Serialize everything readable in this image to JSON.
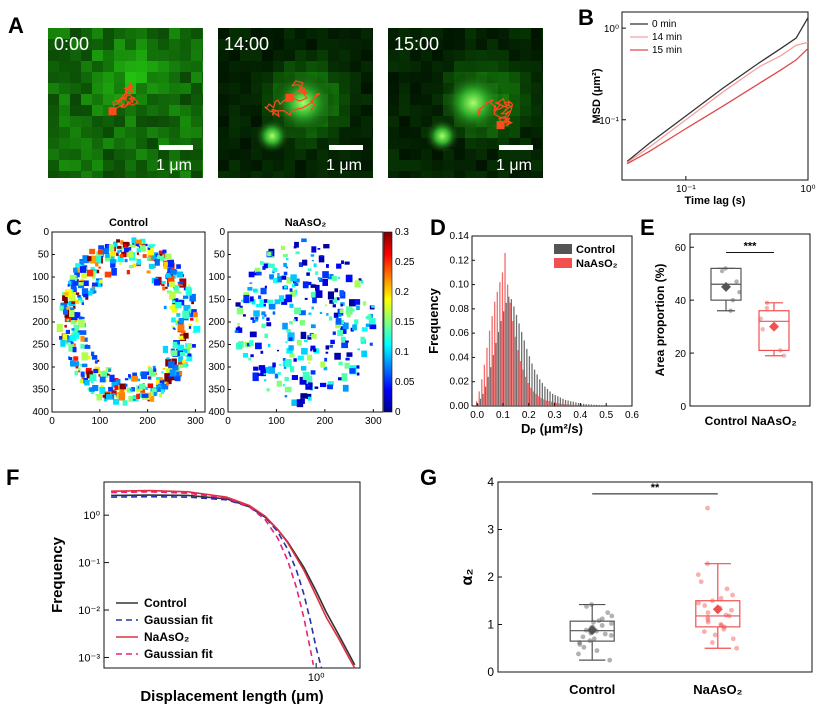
{
  "panels": {
    "A": {
      "letter": "A",
      "frames": [
        {
          "time": "0:00",
          "scale_label": "1 μm"
        },
        {
          "time": "14:00",
          "scale_label": "1 μm"
        },
        {
          "time": "15:00",
          "scale_label": "1 μm"
        }
      ],
      "colors": {
        "background": "#0b1a06",
        "cell": "#2fae2a",
        "track": "#ff4a1c"
      }
    },
    "B": {
      "letter": "B"
    },
    "C": {
      "letter": "C"
    },
    "D": {
      "letter": "D"
    },
    "E": {
      "letter": "E"
    },
    "F": {
      "letter": "F"
    },
    "G": {
      "letter": "G"
    }
  },
  "chart_data": [
    {
      "panel": "B",
      "type": "line",
      "xlabel": "Time lag (s)",
      "ylabel": "MSD (μm²)",
      "xscale": "log",
      "yscale": "log",
      "xlim": [
        0.03,
        1.0
      ],
      "ylim": [
        0.022,
        1.5
      ],
      "xtick_labels": [
        "10⁻¹",
        "10⁰"
      ],
      "ytick_labels": [
        "10⁻¹",
        "10⁰"
      ],
      "legend_position": "top-left",
      "series": [
        {
          "name": "0 min",
          "color": "#333333",
          "x": [
            0.033,
            0.05,
            0.1,
            0.2,
            0.4,
            0.6,
            0.8,
            1.0
          ],
          "y": [
            0.035,
            0.055,
            0.11,
            0.22,
            0.42,
            0.6,
            0.78,
            1.3
          ]
        },
        {
          "name": "14 min",
          "color": "#f4a0a0",
          "x": [
            0.033,
            0.05,
            0.1,
            0.2,
            0.4,
            0.6,
            0.8,
            1.0
          ],
          "y": [
            0.034,
            0.05,
            0.1,
            0.2,
            0.38,
            0.5,
            0.65,
            0.7
          ]
        },
        {
          "name": "15 min",
          "color": "#e04848",
          "x": [
            0.033,
            0.05,
            0.1,
            0.2,
            0.4,
            0.6,
            0.8,
            1.0
          ],
          "y": [
            0.033,
            0.045,
            0.08,
            0.14,
            0.25,
            0.35,
            0.45,
            0.6
          ]
        }
      ]
    },
    {
      "panel": "C",
      "type": "heatmap",
      "titles": [
        "Control",
        "NaAsO₂"
      ],
      "x_ticks": [
        0,
        100,
        200,
        300
      ],
      "y_ticks": [
        0,
        50,
        100,
        150,
        200,
        250,
        300,
        350,
        400
      ],
      "colorbar_ticks": [
        "0.3",
        "0.25",
        "0.2",
        "0.15",
        "0.1",
        "0.05",
        "0"
      ],
      "colorbar_range": [
        0,
        0.3
      ],
      "colormap": "jet"
    },
    {
      "panel": "D",
      "type": "bar",
      "xlabel": "Dₚ (μm²/s)",
      "ylabel": "Frequency",
      "xlim": [
        -0.02,
        0.6
      ],
      "ylim": [
        0,
        0.14
      ],
      "x_ticks": [
        "0.0",
        "0.1",
        "0.2",
        "0.3",
        "0.4",
        "0.5",
        "0.6"
      ],
      "y_ticks": [
        "0.00",
        "0.02",
        "0.04",
        "0.06",
        "0.08",
        "0.10",
        "0.12",
        "0.14"
      ],
      "legend_position": "top-right",
      "bin_width": 0.01,
      "bin_centers": [
        0.0,
        0.01,
        0.02,
        0.03,
        0.04,
        0.05,
        0.06,
        0.07,
        0.08,
        0.09,
        0.1,
        0.11,
        0.12,
        0.13,
        0.14,
        0.15,
        0.16,
        0.17,
        0.18,
        0.19,
        0.2,
        0.21,
        0.22,
        0.23,
        0.24,
        0.25,
        0.26,
        0.27,
        0.28,
        0.29,
        0.3,
        0.31,
        0.32,
        0.33,
        0.34,
        0.35,
        0.36,
        0.37,
        0.38,
        0.39,
        0.4,
        0.41,
        0.42,
        0.43,
        0.44,
        0.45,
        0.46,
        0.47,
        0.48,
        0.49,
        0.5,
        0.51,
        0.52,
        0.53,
        0.54,
        0.55,
        0.56,
        0.57,
        0.58,
        0.59
      ],
      "series": [
        {
          "name": "Control",
          "color": "#555555",
          "values": [
            0.002,
            0.006,
            0.01,
            0.016,
            0.024,
            0.032,
            0.042,
            0.052,
            0.061,
            0.07,
            0.078,
            0.085,
            0.09,
            0.088,
            0.082,
            0.075,
            0.068,
            0.061,
            0.054,
            0.047,
            0.041,
            0.035,
            0.03,
            0.026,
            0.022,
            0.019,
            0.016,
            0.014,
            0.012,
            0.01,
            0.009,
            0.008,
            0.007,
            0.006,
            0.005,
            0.0045,
            0.004,
            0.0035,
            0.003,
            0.0025,
            0.002,
            0.0018,
            0.0016,
            0.0014,
            0.0012,
            0.001,
            0.0009,
            0.0008,
            0.0007,
            0.0006,
            0.0005,
            0.0005,
            0.0004,
            0.0004,
            0.0003,
            0.0003,
            0.0002,
            0.0002,
            0.0002,
            0.0001
          ]
        },
        {
          "name": "NaAsO₂",
          "color": "#f05050",
          "values": [
            0.004,
            0.012,
            0.022,
            0.034,
            0.048,
            0.062,
            0.074,
            0.086,
            0.094,
            0.102,
            0.11,
            0.126,
            0.1,
            0.085,
            0.07,
            0.057,
            0.046,
            0.037,
            0.03,
            0.024,
            0.019,
            0.015,
            0.012,
            0.01,
            0.008,
            0.0065,
            0.0055,
            0.0045,
            0.004,
            0.0035,
            0.003,
            0.0025,
            0.002,
            0.0018,
            0.0015,
            0.0013,
            0.0011,
            0.001,
            0.0009,
            0.0008,
            0.0007,
            0.0006,
            0.0005,
            0.0005,
            0.0004,
            0.0004,
            0.0003,
            0.0003,
            0.0003,
            0.0002,
            0.0002,
            0.0002,
            0.0002,
            0.0001,
            0.0001,
            0.0001,
            0.0001,
            0.0001,
            0.0001,
            0.0001
          ]
        }
      ]
    },
    {
      "panel": "E",
      "type": "box",
      "ylabel": "Area proportion (%)",
      "ylim": [
        0,
        65
      ],
      "y_ticks": [
        0,
        20,
        40,
        60
      ],
      "categories": [
        "Control",
        "NaAsO₂"
      ],
      "significance": "***",
      "boxes": [
        {
          "name": "Control",
          "color": "#555555",
          "q1": 40,
          "median": 46,
          "q3": 52,
          "whisker_low": 36,
          "whisker_high": 52,
          "mean": 45,
          "points": [
            52,
            51,
            47,
            43,
            40,
            36
          ]
        },
        {
          "name": "NaAsO₂",
          "color": "#f05050",
          "q1": 21,
          "median": 32,
          "q3": 36,
          "whisker_low": 19,
          "whisker_high": 39,
          "mean": 30,
          "points": [
            39,
            37,
            33,
            29,
            21,
            19
          ]
        }
      ]
    },
    {
      "panel": "F",
      "type": "line",
      "xlabel": "Displacement length (μm)",
      "ylabel": "Frequency",
      "xscale": "log",
      "yscale": "log",
      "xlim": [
        0.022,
        2.2
      ],
      "ylim": [
        0.0006,
        5
      ],
      "xtick_labels": [
        "10⁰"
      ],
      "ytick_labels": [
        "10⁰",
        "10⁻¹",
        "10⁻²",
        "10⁻³"
      ],
      "legend_position": "bottom-left",
      "series": [
        {
          "name": "Control",
          "color": "#333333",
          "style": "solid",
          "x": [
            0.025,
            0.05,
            0.1,
            0.2,
            0.3,
            0.4,
            0.5,
            0.6,
            0.8,
            1.0,
            1.2,
            1.5,
            1.8,
            2.0
          ],
          "y": [
            2.6,
            2.65,
            2.6,
            2.2,
            1.5,
            0.9,
            0.5,
            0.27,
            0.08,
            0.025,
            0.009,
            0.003,
            0.0012,
            0.0007
          ]
        },
        {
          "name": "Gaussian fit",
          "color": "#2233aa",
          "style": "dashed",
          "x": [
            0.025,
            0.05,
            0.1,
            0.2,
            0.3,
            0.4,
            0.5,
            0.6,
            0.7,
            0.8,
            0.9,
            1.0,
            1.1
          ],
          "y": [
            2.4,
            2.45,
            2.4,
            2.1,
            1.5,
            0.9,
            0.45,
            0.19,
            0.07,
            0.022,
            0.006,
            0.0016,
            0.0006
          ]
        },
        {
          "name": "NaAsO₂",
          "color": "#e03040",
          "style": "solid",
          "x": [
            0.025,
            0.05,
            0.1,
            0.2,
            0.3,
            0.4,
            0.5,
            0.6,
            0.8,
            1.0,
            1.2,
            1.5,
            1.8,
            2.0
          ],
          "y": [
            3.2,
            3.3,
            3.1,
            2.4,
            1.6,
            0.95,
            0.5,
            0.26,
            0.07,
            0.02,
            0.007,
            0.0025,
            0.001,
            0.0006
          ]
        },
        {
          "name": "Gaussian fit",
          "color": "#e8207a",
          "style": "dashed",
          "x": [
            0.025,
            0.05,
            0.1,
            0.2,
            0.3,
            0.4,
            0.5,
            0.6,
            0.7,
            0.8,
            0.9,
            0.95
          ],
          "y": [
            3.0,
            3.1,
            2.9,
            2.3,
            1.5,
            0.8,
            0.33,
            0.11,
            0.03,
            0.007,
            0.0015,
            0.0007
          ]
        }
      ]
    },
    {
      "panel": "G",
      "type": "box",
      "ylabel": "α₂",
      "ylim": [
        0,
        4
      ],
      "y_ticks": [
        0,
        1,
        2,
        3,
        4
      ],
      "categories": [
        "Control",
        "NaAsO₂"
      ],
      "significance": "**",
      "boxes": [
        {
          "name": "Control",
          "color": "#555555",
          "q1": 0.65,
          "median": 0.87,
          "q3": 1.07,
          "whisker_low": 0.25,
          "whisker_high": 1.42,
          "mean": 0.88,
          "points": [
            1.42,
            1.38,
            1.25,
            1.18,
            1.12,
            1.08,
            1.05,
            1.02,
            0.98,
            0.95,
            0.92,
            0.9,
            0.88,
            0.86,
            0.84,
            0.82,
            0.8,
            0.77,
            0.74,
            0.7,
            0.66,
            0.62,
            0.58,
            0.52,
            0.45,
            0.38,
            0.25
          ]
        },
        {
          "name": "NaAsO₂",
          "color": "#f05050",
          "q1": 0.95,
          "median": 1.18,
          "q3": 1.5,
          "whisker_low": 0.5,
          "whisker_high": 2.28,
          "mean": 1.32,
          "points": [
            3.45,
            2.28,
            2.05,
            1.9,
            1.75,
            1.62,
            1.55,
            1.5,
            1.45,
            1.4,
            1.35,
            1.3,
            1.25,
            1.2,
            1.18,
            1.15,
            1.1,
            1.05,
            1.0,
            0.98,
            0.95,
            0.9,
            0.85,
            0.78,
            0.7,
            0.62,
            0.5
          ]
        }
      ]
    }
  ]
}
